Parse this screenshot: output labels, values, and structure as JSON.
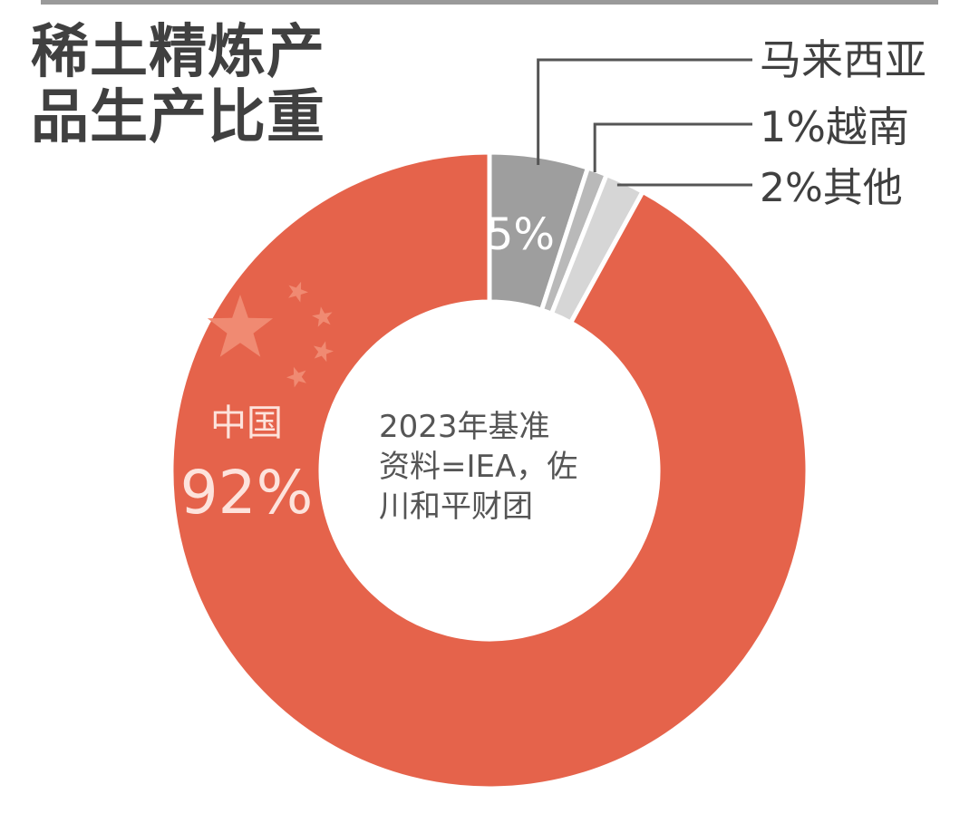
{
  "title_line1": "稀土精炼产",
  "title_line2": "品生产比重",
  "center_note": [
    "2023年基准",
    "资料=IEA，佐",
    "川和平财团"
  ],
  "colors": {
    "china": "#e5634b",
    "malaysia": "#9e9e9e",
    "vietnam": "#b9b9b9",
    "other": "#d6d6d6",
    "text": "#404040",
    "leader": "#555555"
  },
  "chart_data": {
    "type": "pie",
    "donut": true,
    "title": "稀土精炼产品生产比重",
    "slices": [
      {
        "label": "马来西亚",
        "value": 5,
        "value_text": "5%"
      },
      {
        "label": "越南",
        "value": 1,
        "value_text": "1%"
      },
      {
        "label": "其他",
        "value": 2,
        "value_text": "2%"
      },
      {
        "label": "中国",
        "value": 92,
        "value_text": "92%"
      }
    ],
    "note": "2023年基准 资料=IEA，佐川和平财团"
  },
  "icons": {
    "china_flag_stars": "star-icon"
  }
}
